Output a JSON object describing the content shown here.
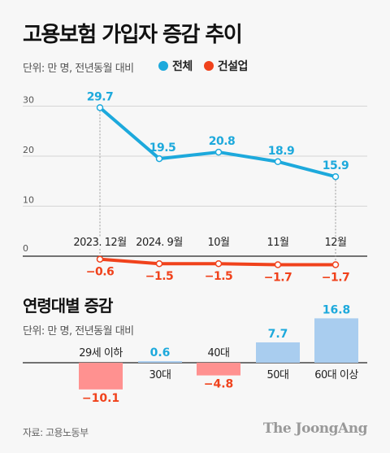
{
  "title": "고용보험 가입자 증감 추이",
  "subtitle": "단위: 만 명, 전년동월 대비",
  "legend": {
    "total": "전체",
    "construction": "건설업"
  },
  "section2_title": "연령대별 증감",
  "section2_subtitle": "단위: 만 명, 전년동월 대비",
  "source": "자료: 고용노동부",
  "brand": "The JoongAng",
  "colors": {
    "total": "#1da9dc",
    "construction": "#f0421c",
    "positive_bar": "#a9cdef",
    "negative_bar": "#ff9190",
    "positive_label": "#1da9dc",
    "negative_label": "#f0421c"
  },
  "chart_data": [
    {
      "type": "line",
      "x": [
        "2023. 12월",
        "2024. 9월",
        "10월",
        "11월",
        "12월"
      ],
      "yticks": [
        0,
        10,
        20,
        30
      ],
      "ylim": [
        -3,
        33
      ],
      "series": [
        {
          "name": "전체",
          "values": [
            29.7,
            19.5,
            20.8,
            18.9,
            15.9
          ],
          "labels": [
            "29.7",
            "19.5",
            "20.8",
            "18.9",
            "15.9"
          ]
        },
        {
          "name": "건설업",
          "values": [
            -0.6,
            -1.5,
            -1.5,
            -1.7,
            -1.7
          ],
          "labels": [
            "−0.6",
            "−1.5",
            "−1.5",
            "−1.7",
            "−1.7"
          ]
        }
      ]
    },
    {
      "type": "bar",
      "categories": [
        "29세 이하",
        "30대",
        "40대",
        "50대",
        "60대 이상"
      ],
      "values": [
        -10.1,
        0.6,
        -4.8,
        7.7,
        16.8
      ],
      "labels": [
        "−10.1",
        "0.6",
        "−4.8",
        "7.7",
        "16.8"
      ]
    }
  ]
}
